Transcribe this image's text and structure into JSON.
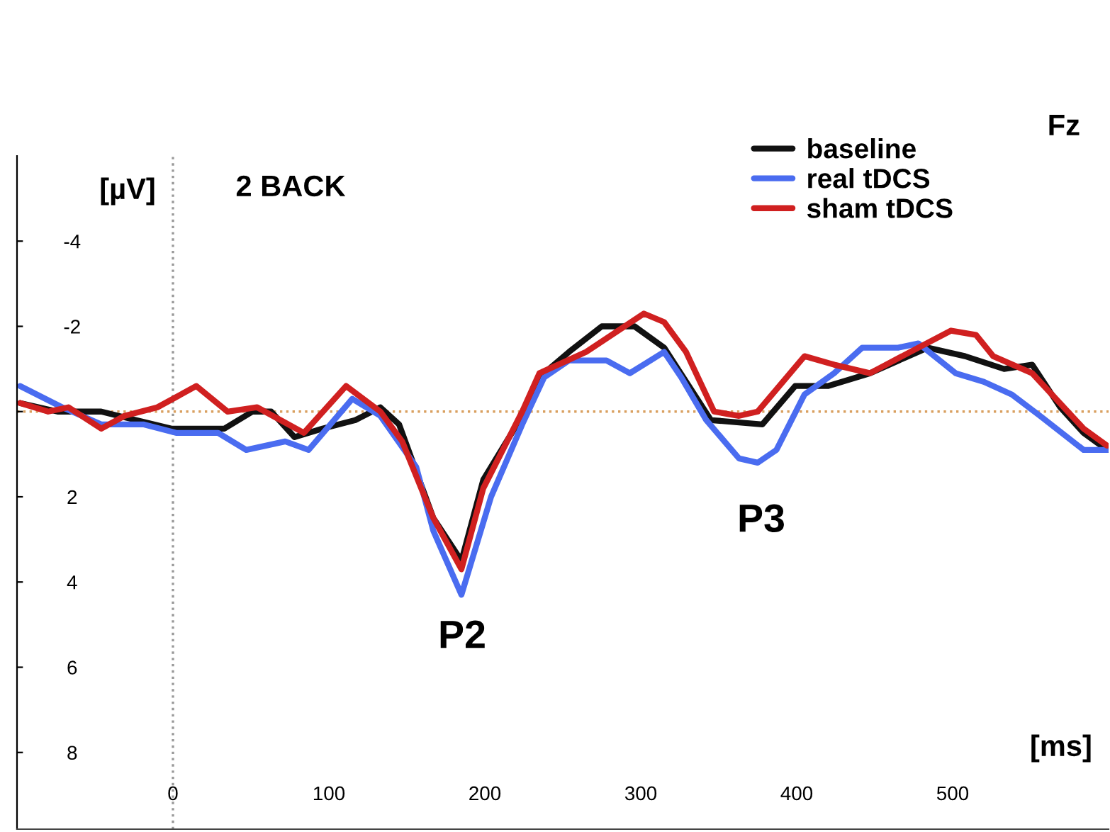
{
  "chart_data": {
    "type": "line",
    "xlabel": "[ms]",
    "ylabel": "[µV]",
    "annotations": [
      "2 BACK",
      "Fz",
      "P2",
      "P3"
    ],
    "xlim": [
      -100,
      600
    ],
    "xticks": [
      0,
      100,
      200,
      300,
      400,
      500
    ],
    "ylim": [
      9.8,
      -6
    ],
    "yticks": [
      -4,
      -2,
      {
        "value": 0,
        "label": null
      },
      2,
      4,
      6,
      8
    ],
    "ref_lines": [
      {
        "axis": "x",
        "value": 0,
        "color": "#999999",
        "line_style": "dotted"
      },
      {
        "axis": "y",
        "value": 0,
        "color": "#d9a060",
        "line_style": "dotted"
      }
    ],
    "legend": "top right",
    "grid": false,
    "series": [
      {
        "name": "baseline",
        "color": "#111111",
        "x": [
          -98,
          -74,
          -46,
          -35,
          -1,
          33,
          51,
          63,
          78,
          96,
          117,
          133,
          145,
          154,
          167,
          185,
          199,
          224,
          238,
          254,
          275,
          296,
          315,
          345,
          378,
          399,
          420,
          447,
          484,
          508,
          533,
          551,
          569,
          584,
          599
        ],
        "values": [
          -0.2,
          0.0,
          0.0,
          0.1,
          0.4,
          0.4,
          0.0,
          0.0,
          0.6,
          0.4,
          0.2,
          -0.1,
          0.3,
          1.2,
          2.5,
          3.5,
          1.6,
          0.1,
          -0.9,
          -1.4,
          -2.0,
          -2.0,
          -1.5,
          0.2,
          0.3,
          -0.6,
          -0.6,
          -0.9,
          -1.5,
          -1.3,
          -1.0,
          -1.1,
          -0.1,
          0.5,
          0.9
        ]
      },
      {
        "name": "real tDCS",
        "color": "#4a6cf0",
        "x": [
          -98,
          -71,
          -46,
          -19,
          2,
          29,
          47,
          72,
          87,
          115,
          133,
          156,
          167,
          185,
          204,
          224,
          238,
          254,
          278,
          293,
          315,
          326,
          342,
          363,
          375,
          387,
          405,
          424,
          442,
          465,
          478,
          502,
          520,
          538,
          556,
          584,
          599
        ],
        "values": [
          -0.6,
          -0.1,
          0.3,
          0.3,
          0.5,
          0.5,
          0.9,
          0.7,
          0.9,
          -0.3,
          0.1,
          1.3,
          2.8,
          4.3,
          2.0,
          0.3,
          -0.8,
          -1.2,
          -1.2,
          -0.9,
          -1.4,
          -0.8,
          0.2,
          1.1,
          1.2,
          0.9,
          -0.4,
          -0.9,
          -1.5,
          -1.5,
          -1.6,
          -0.9,
          -0.7,
          -0.4,
          0.1,
          0.9,
          0.9
        ]
      },
      {
        "name": "sham tDCS",
        "color": "#d02020",
        "x": [
          -98,
          -80,
          -67,
          -46,
          -31,
          -10,
          15,
          35,
          54,
          84,
          111,
          133,
          147,
          167,
          185,
          199,
          224,
          235,
          265,
          302,
          315,
          329,
          347,
          363,
          375,
          405,
          424,
          447,
          478,
          499,
          515,
          526,
          551,
          584,
          599
        ],
        "values": [
          -0.2,
          0.0,
          -0.1,
          0.4,
          0.1,
          -0.1,
          -0.6,
          0.0,
          -0.1,
          0.5,
          -0.6,
          0.0,
          0.7,
          2.5,
          3.7,
          1.8,
          0.0,
          -0.9,
          -1.4,
          -2.3,
          -2.1,
          -1.4,
          0.0,
          0.1,
          0.0,
          -1.3,
          -1.1,
          -0.9,
          -1.5,
          -1.9,
          -1.8,
          -1.3,
          -0.9,
          0.4,
          0.8
        ]
      }
    ]
  }
}
